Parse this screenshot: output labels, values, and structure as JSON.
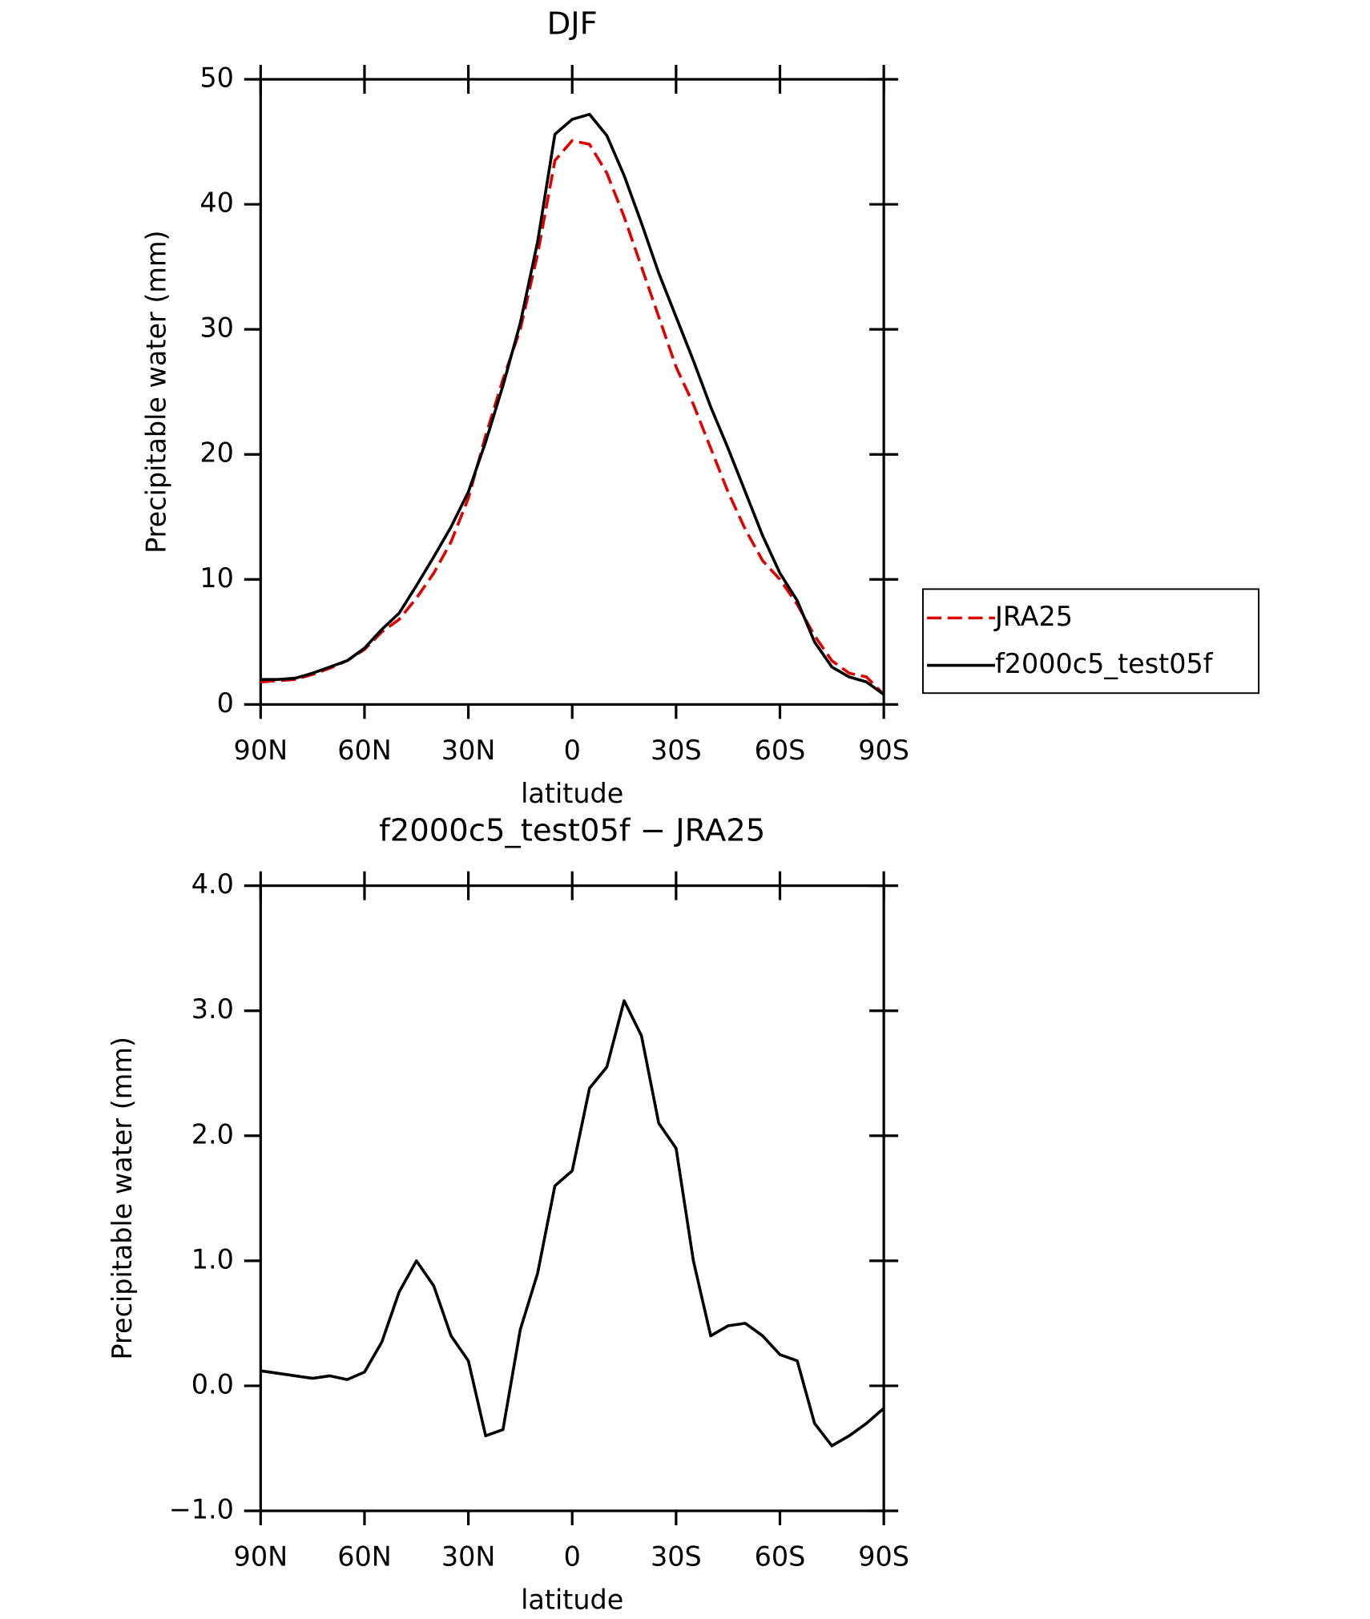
{
  "chart_data": [
    {
      "type": "line",
      "title": "DJF",
      "xlabel": "latitude",
      "ylabel": "Precipitable water (mm)",
      "x": [
        90,
        85,
        80,
        75,
        70,
        65,
        60,
        55,
        50,
        45,
        40,
        35,
        30,
        25,
        20,
        15,
        10,
        5,
        0,
        -5,
        -10,
        -15,
        -20,
        -25,
        -30,
        -35,
        -40,
        -45,
        -50,
        -55,
        -60,
        -65,
        -70,
        -75,
        -80,
        -85,
        -90
      ],
      "series": [
        {
          "name": "JRA25",
          "color": "#e00000",
          "dash": true,
          "values": [
            1.8,
            1.9,
            2.0,
            2.4,
            2.9,
            3.5,
            4.4,
            5.8,
            6.8,
            8.5,
            10.5,
            13.0,
            16.5,
            21.5,
            26,
            30,
            36,
            43.5,
            45.1,
            44.8,
            42.5,
            39,
            35,
            31,
            27,
            24,
            20.5,
            17,
            14,
            11.5,
            10,
            8,
            5.5,
            3.5,
            2.5,
            2.2,
            0.8
          ]
        },
        {
          "name": "f2000c5_test05f",
          "color": "#000000",
          "dash": false,
          "values": [
            2.0,
            2.0,
            2.1,
            2.5,
            3.0,
            3.5,
            4.5,
            6.0,
            7.3,
            9.5,
            11.8,
            14.2,
            17.0,
            21.0,
            25.5,
            30.5,
            37,
            45.6,
            46.8,
            47.2,
            45.5,
            42.3,
            38.5,
            34.5,
            31,
            27.5,
            23.8,
            20.5,
            17,
            13.5,
            10.5,
            8.3,
            5,
            3,
            2.2,
            1.8,
            0.8
          ]
        }
      ],
      "xlim": [
        90,
        -90
      ],
      "xticks": [
        {
          "value": 90,
          "label": "90N"
        },
        {
          "value": 60,
          "label": "60N"
        },
        {
          "value": 30,
          "label": "30N"
        },
        0,
        {
          "value": -30,
          "label": "30S"
        },
        {
          "value": -60,
          "label": "60S"
        },
        {
          "value": -90,
          "label": "90S"
        }
      ],
      "ylim": [
        0,
        50
      ],
      "yticks": [
        0,
        10,
        20,
        30,
        40,
        50
      ],
      "legend": "right"
    },
    {
      "type": "line",
      "title": "f2000c5_test05f − JRA25",
      "xlabel": "latitude",
      "ylabel": "Precipitable water (mm)",
      "x": [
        90,
        85,
        80,
        75,
        70,
        65,
        60,
        55,
        50,
        45,
        40,
        35,
        30,
        25,
        20,
        15,
        10,
        5,
        0,
        -5,
        -10,
        -15,
        -20,
        -25,
        -30,
        -35,
        -40,
        -45,
        -50,
        -55,
        -60,
        -65,
        -70,
        -75,
        -80,
        -85,
        -90
      ],
      "series": [
        {
          "color": "#000000",
          "dash": false,
          "values": [
            0.12,
            0.1,
            0.08,
            0.06,
            0.08,
            0.05,
            0.11,
            0.35,
            0.75,
            1.0,
            0.8,
            0.4,
            0.2,
            -0.4,
            -0.35,
            0.45,
            0.9,
            1.6,
            1.72,
            2.38,
            2.55,
            3.08,
            2.8,
            2.1,
            1.9,
            1.0,
            0.4,
            0.48,
            0.5,
            0.4,
            0.25,
            0.2,
            -0.3,
            -0.48,
            -0.4,
            -0.3,
            -0.18
          ]
        }
      ],
      "xlim": [
        90,
        -90
      ],
      "xticks": [
        {
          "value": 90,
          "label": "90N"
        },
        {
          "value": 60,
          "label": "60N"
        },
        {
          "value": 30,
          "label": "30N"
        },
        0,
        {
          "value": -30,
          "label": "30S"
        },
        {
          "value": -60,
          "label": "60S"
        },
        {
          "value": -90,
          "label": "90S"
        }
      ],
      "ylim": [
        -1,
        4
      ],
      "yticks": [
        {
          "value": -1,
          "label": "−1.0"
        },
        {
          "value": 0,
          "label": "0.0"
        },
        {
          "value": 1,
          "label": "1.0"
        },
        {
          "value": 2,
          "label": "2.0"
        },
        {
          "value": 3,
          "label": "3.0"
        },
        {
          "value": 4,
          "label": "4.0"
        }
      ]
    }
  ]
}
